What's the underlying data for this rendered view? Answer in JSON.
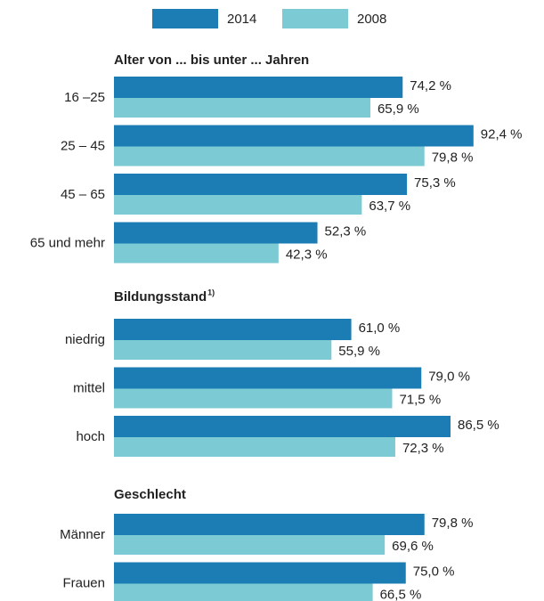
{
  "chart_data": {
    "type": "hbar",
    "series": [
      {
        "name": "2014",
        "color": "#1b7db3",
        "values": [
          74.2,
          92.4,
          75.3,
          52.3,
          61.0,
          79.0,
          86.5,
          79.8,
          75.0
        ],
        "value_labels": [
          "74,2 %",
          "92,4 %",
          "75,3 %",
          "52,3 %",
          "61,0 %",
          "79,0 %",
          "86,5 %",
          "79,8 %",
          "75,0 %"
        ]
      },
      {
        "name": "2008",
        "color": "#7ccad3",
        "values": [
          65.9,
          79.8,
          63.7,
          42.3,
          55.9,
          71.5,
          72.3,
          69.6,
          66.5
        ],
        "value_labels": [
          "65,9 %",
          "79,8 %",
          "63,7 %",
          "42,3 %",
          "55,9 %",
          "71,5 %",
          "72,3 %",
          "69,6 %",
          "66,5 %"
        ]
      }
    ],
    "sections": [
      {
        "title": "Alter von ... bis unter ... Jahren",
        "categories": [
          "16 –25",
          "25 – 45",
          "45 – 65",
          "65 und mehr"
        ]
      },
      {
        "title": "Bildungsstand",
        "footnote_mark": "1)",
        "categories": [
          "niedrig",
          "mittel",
          "hoch"
        ]
      },
      {
        "title": "Geschlecht",
        "categories": [
          "Männer",
          "Frauen"
        ]
      }
    ],
    "xlim": [
      0,
      100
    ]
  }
}
